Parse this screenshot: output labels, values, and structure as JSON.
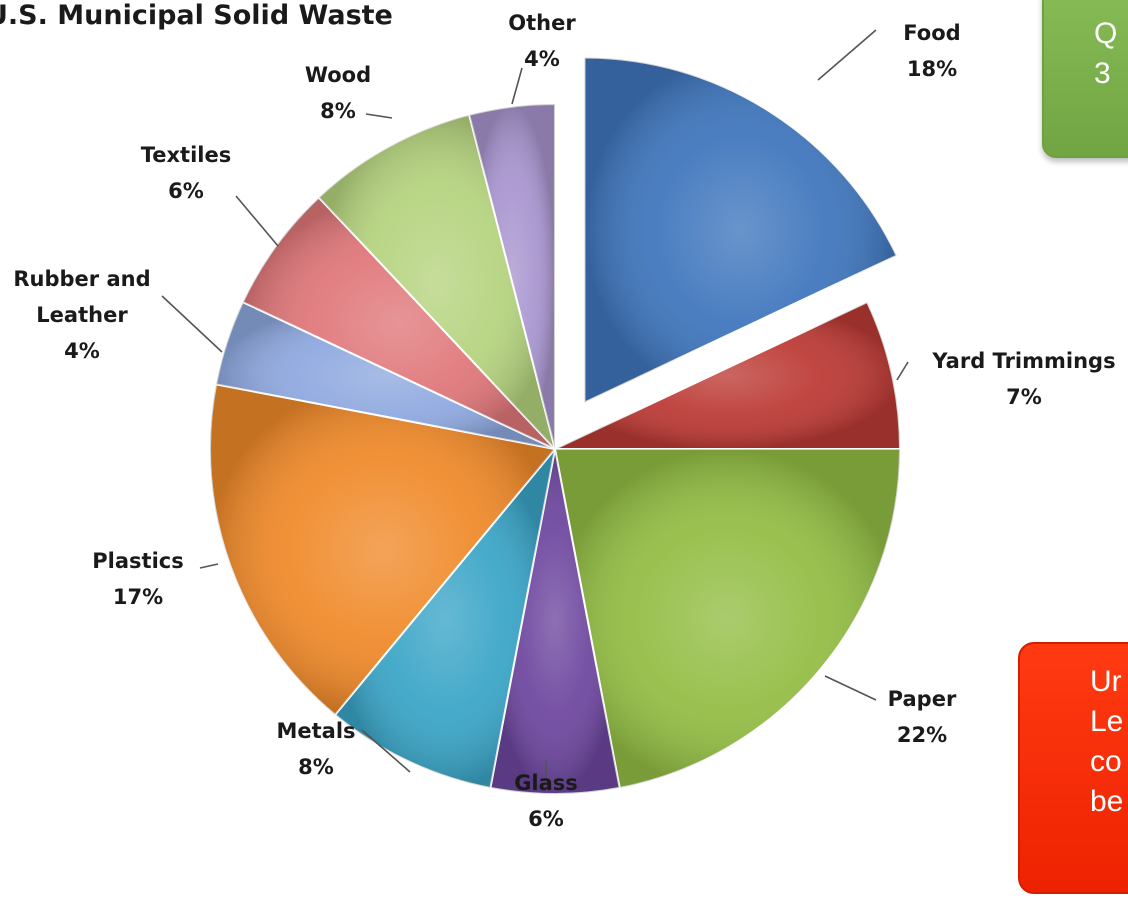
{
  "chart_data": {
    "type": "pie",
    "title": "U.S. Municipal Solid Waste",
    "categories": [
      "Food",
      "Yard Trimmings",
      "Paper",
      "Glass",
      "Metals",
      "Plastics",
      "Rubber and Leather",
      "Textiles",
      "Wood",
      "Other"
    ],
    "values": [
      18,
      7,
      22,
      6,
      8,
      17,
      4,
      6,
      8,
      4
    ],
    "value_labels": [
      "18%",
      "7%",
      "22%",
      "6%",
      "8%",
      "17%",
      "4%",
      "6%",
      "8%",
      "4%"
    ],
    "colors": [
      "#3f76bd",
      "#bc3a35",
      "#93bd44",
      "#6e479f",
      "#3aa5c7",
      "#f08a2a",
      "#8ea8df",
      "#e0777a",
      "#b5d37e",
      "#a895cf"
    ],
    "exploded": [
      "Food"
    ],
    "start_angle_deg": 0,
    "direction": "clockwise",
    "legend": "none (category labels with leader lines)"
  },
  "callouts": {
    "green": {
      "lines": [
        "Q",
        "3"
      ],
      "color": "#7cb24c"
    },
    "red": {
      "lines": [
        "Ur",
        "Le",
        "co",
        "be"
      ],
      "color": "#ff2a06"
    }
  }
}
